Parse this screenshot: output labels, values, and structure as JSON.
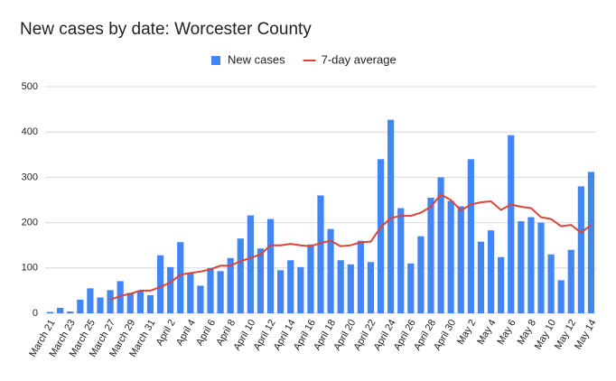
{
  "chart_data": {
    "type": "bar",
    "title": "New cases by date: Worcester County",
    "categories": [
      "March 21",
      null,
      "March 23",
      null,
      "March 25",
      null,
      "March 27",
      null,
      "March 29",
      null,
      "March 31",
      null,
      "April 2",
      null,
      "April 4",
      null,
      "April 6",
      null,
      "April 8",
      null,
      "April 10",
      null,
      "April 12",
      null,
      "April 14",
      null,
      "April 16",
      null,
      "April 18",
      null,
      "April 20",
      null,
      "April 22",
      null,
      "April 24",
      null,
      "April 26",
      null,
      "April 28",
      null,
      "April 30",
      null,
      "May 2",
      null,
      "May 4",
      null,
      "May 6",
      null,
      "May 8",
      null,
      "May 10",
      null,
      "May 12",
      null,
      "May 14"
    ],
    "series": [
      {
        "name": "New cases",
        "type": "bar",
        "color": "#4285f4",
        "values": [
          3,
          12,
          4,
          30,
          55,
          35,
          51,
          71,
          45,
          50,
          40,
          128,
          102,
          157,
          88,
          61,
          100,
          93,
          122,
          165,
          216,
          143,
          208,
          95,
          117,
          102,
          152,
          260,
          186,
          117,
          108,
          160,
          113,
          340,
          427,
          232,
          110,
          170,
          255,
          300,
          248,
          236,
          340,
          158,
          183,
          124,
          393,
          203,
          212,
          200,
          130,
          73,
          140,
          280,
          312
        ]
      },
      {
        "name": "7-day average",
        "type": "line",
        "color": "#db4437",
        "values": [
          null,
          null,
          null,
          null,
          null,
          null,
          30,
          38,
          43,
          50,
          50,
          58,
          68,
          85,
          89,
          92,
          97,
          105,
          105,
          115,
          122,
          130,
          150,
          150,
          153,
          150,
          148,
          155,
          160,
          148,
          150,
          157,
          158,
          190,
          210,
          215,
          215,
          222,
          235,
          262,
          250,
          227,
          240,
          245,
          247,
          228,
          240,
          235,
          232,
          212,
          208,
          192,
          195,
          178,
          195
        ]
      }
    ],
    "ylim": [
      0,
      500
    ],
    "yticks": [
      0,
      100,
      200,
      300,
      400,
      500
    ],
    "grid": true,
    "legend": "top"
  }
}
